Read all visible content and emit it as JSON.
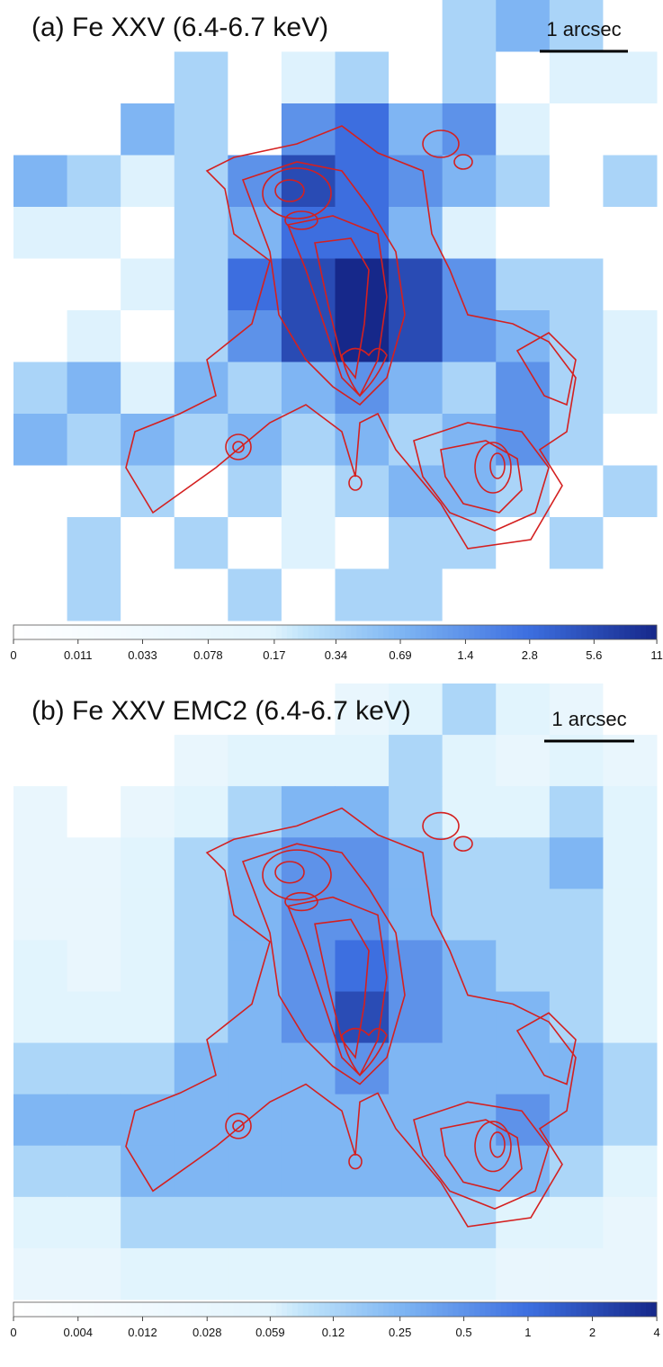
{
  "chart_data": [
    {
      "type": "heatmap",
      "title": "(a) Fe XXV (6.4-6.7 keV)",
      "scale_bar_label": "1 arcsec",
      "scale": "log",
      "clim": [
        0,
        11
      ],
      "cticks": [
        0,
        0.011,
        0.033,
        0.078,
        0.17,
        0.34,
        0.69,
        1.4,
        2.8,
        5.6,
        11
      ],
      "z": [
        [
          0,
          0,
          0,
          0,
          0,
          0,
          0,
          0,
          0.34,
          0.69,
          0.34,
          0
        ],
        [
          0,
          0,
          0,
          0.34,
          0,
          0.17,
          0.34,
          0,
          0.34,
          0,
          0.17,
          0.17
        ],
        [
          0,
          0,
          0.69,
          0.34,
          0,
          1.4,
          2.8,
          0.69,
          1.4,
          0.17,
          0,
          0
        ],
        [
          0.69,
          0.34,
          0.17,
          0.34,
          1.4,
          5.6,
          2.8,
          1.4,
          0.69,
          0.34,
          0,
          0.34
        ],
        [
          0.17,
          0.17,
          0,
          0.34,
          0.69,
          2.8,
          2.8,
          0.69,
          0.17,
          0,
          0,
          0
        ],
        [
          0,
          0,
          0.17,
          0.34,
          2.8,
          5.6,
          11,
          5.6,
          1.4,
          0.34,
          0.34,
          0
        ],
        [
          0,
          0.17,
          0,
          0.34,
          1.4,
          5.6,
          11,
          5.6,
          1.4,
          0.69,
          0.34,
          0.17
        ],
        [
          0.34,
          0.69,
          0.17,
          0.69,
          0.34,
          0.69,
          1.4,
          0.69,
          0.34,
          1.4,
          0.34,
          0.17
        ],
        [
          0.69,
          0.34,
          0.69,
          0.34,
          0.69,
          0.34,
          0.69,
          0.34,
          0.69,
          1.4,
          0.34,
          0
        ],
        [
          0,
          0,
          0.34,
          0,
          0.34,
          0.17,
          0.34,
          0.69,
          0.69,
          0.34,
          0,
          0.34
        ],
        [
          0,
          0.34,
          0,
          0.34,
          0,
          0.17,
          0,
          0.34,
          0.34,
          0,
          0.34,
          0
        ],
        [
          0,
          0.34,
          0,
          0,
          0.34,
          0,
          0.34,
          0.34,
          0,
          0,
          0,
          0
        ]
      ]
    },
    {
      "type": "heatmap",
      "title": "(b) Fe XXV EMC2 (6.4-6.7 keV)",
      "scale_bar_label": "1 arcsec",
      "scale": "log",
      "clim": [
        0,
        4
      ],
      "cticks": [
        0,
        0.004,
        0.012,
        0.028,
        0.059,
        0.12,
        0.25,
        0.5,
        1,
        2,
        4
      ],
      "z": [
        [
          0,
          0,
          0,
          0,
          0,
          0,
          0.03,
          0.06,
          0.12,
          0.06,
          0.03,
          0
        ],
        [
          0,
          0,
          0,
          0.03,
          0.06,
          0.06,
          0.06,
          0.12,
          0.06,
          0.03,
          0.06,
          0.03
        ],
        [
          0.03,
          0,
          0.03,
          0.06,
          0.12,
          0.25,
          0.25,
          0.12,
          0.06,
          0.06,
          0.12,
          0.06
        ],
        [
          0.03,
          0.03,
          0.06,
          0.12,
          0.25,
          0.5,
          0.5,
          0.25,
          0.12,
          0.12,
          0.25,
          0.06
        ],
        [
          0.03,
          0.03,
          0.06,
          0.12,
          0.25,
          0.5,
          0.5,
          0.25,
          0.12,
          0.12,
          0.12,
          0.06
        ],
        [
          0.06,
          0.03,
          0.06,
          0.12,
          0.25,
          0.5,
          1,
          0.5,
          0.25,
          0.12,
          0.12,
          0.06
        ],
        [
          0.06,
          0.06,
          0.06,
          0.12,
          0.25,
          0.5,
          2,
          0.5,
          0.25,
          0.25,
          0.12,
          0.06
        ],
        [
          0.12,
          0.12,
          0.12,
          0.25,
          0.25,
          0.25,
          0.5,
          0.25,
          0.25,
          0.25,
          0.25,
          0.12
        ],
        [
          0.25,
          0.25,
          0.25,
          0.25,
          0.25,
          0.25,
          0.25,
          0.25,
          0.25,
          0.5,
          0.25,
          0.12
        ],
        [
          0.12,
          0.12,
          0.25,
          0.25,
          0.25,
          0.25,
          0.25,
          0.25,
          0.25,
          0.25,
          0.12,
          0.06
        ],
        [
          0.06,
          0.06,
          0.12,
          0.12,
          0.12,
          0.12,
          0.12,
          0.12,
          0.12,
          0.06,
          0.06,
          0.03
        ],
        [
          0.03,
          0.03,
          0.06,
          0.06,
          0.06,
          0.06,
          0.06,
          0.06,
          0.06,
          0.03,
          0.03,
          0.03
        ]
      ]
    }
  ]
}
